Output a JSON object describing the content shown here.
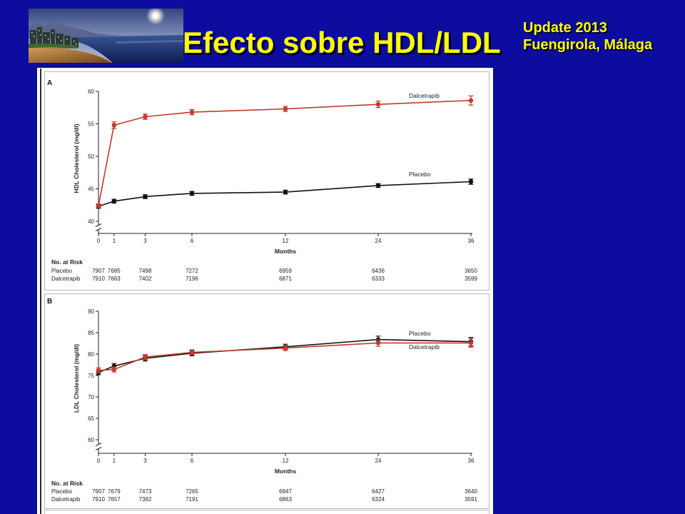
{
  "slide": {
    "title": "Efecto sobre HDL/LDL",
    "meta_line1": "Update 2013",
    "meta_line2": "Fuengirola, Málaga",
    "colors": {
      "background": "#0c0c9e",
      "title_text": "#ffff00",
      "figure_background": "#ffffff"
    }
  },
  "chart_data": [
    {
      "panel": "A",
      "type": "line",
      "xlabel": "Months",
      "ylabel": "HDL Cholesterol (mg/dl)",
      "x": [
        0,
        1,
        3,
        6,
        12,
        24,
        36
      ],
      "yticks": [
        40,
        45,
        50,
        55,
        60
      ],
      "ylim": [
        40,
        60
      ],
      "y_axis_break": true,
      "grid": false,
      "series": [
        {
          "name": "Placebo",
          "color": "#111111",
          "values": [
            42.3,
            43.1,
            43.8,
            44.3,
            44.5,
            45.5,
            46.1
          ],
          "error_bars": [
            0.3,
            0.3,
            0.3,
            0.3,
            0.3,
            0.3,
            0.4
          ]
        },
        {
          "name": "Dalcetrapib",
          "color": "#c23b2e",
          "values": [
            42.4,
            54.8,
            56.1,
            56.8,
            57.3,
            58.0,
            58.6
          ],
          "error_bars": [
            0.3,
            0.5,
            0.4,
            0.4,
            0.4,
            0.5,
            0.7
          ]
        }
      ],
      "risk_table": {
        "title": "No. at Risk",
        "rows": [
          {
            "label": "Placebo",
            "values": [
              7907,
              7685,
              7498,
              7272,
              6959,
              6436,
              3650
            ]
          },
          {
            "label": "Dalcetrapib",
            "values": [
              7910,
              7663,
              7402,
              7196,
              6871,
              6333,
              3599
            ]
          }
        ]
      }
    },
    {
      "panel": "B",
      "type": "line",
      "xlabel": "Months",
      "ylabel": "LDL Cholesterol (mg/dl)",
      "x": [
        0,
        1,
        3,
        6,
        12,
        24,
        36
      ],
      "yticks": [
        60,
        65,
        70,
        75,
        80,
        85,
        90
      ],
      "ylim": [
        60,
        90
      ],
      "y_axis_break": true,
      "grid": false,
      "series": [
        {
          "name": "Placebo",
          "color": "#111111",
          "values": [
            75.7,
            77.2,
            79.0,
            80.2,
            81.7,
            83.4,
            82.9
          ],
          "error_bars": [
            0.5,
            0.6,
            0.6,
            0.6,
            0.6,
            0.8,
            1.0
          ]
        },
        {
          "name": "Dalcetrapib",
          "color": "#c23b2e",
          "values": [
            76.2,
            76.4,
            79.3,
            80.4,
            81.4,
            82.6,
            82.6
          ],
          "error_bars": [
            0.6,
            0.6,
            0.6,
            0.6,
            0.6,
            0.8,
            1.0
          ]
        }
      ],
      "risk_table": {
        "title": "No. at Risk",
        "rows": [
          {
            "label": "Placebo",
            "values": [
              7907,
              7679,
              7473,
              7265,
              6947,
              6427,
              3640
            ]
          },
          {
            "label": "Dalcetrapib",
            "values": [
              7910,
              7657,
              7382,
              7191,
              6863,
              6324,
              3591
            ]
          }
        ]
      }
    }
  ]
}
